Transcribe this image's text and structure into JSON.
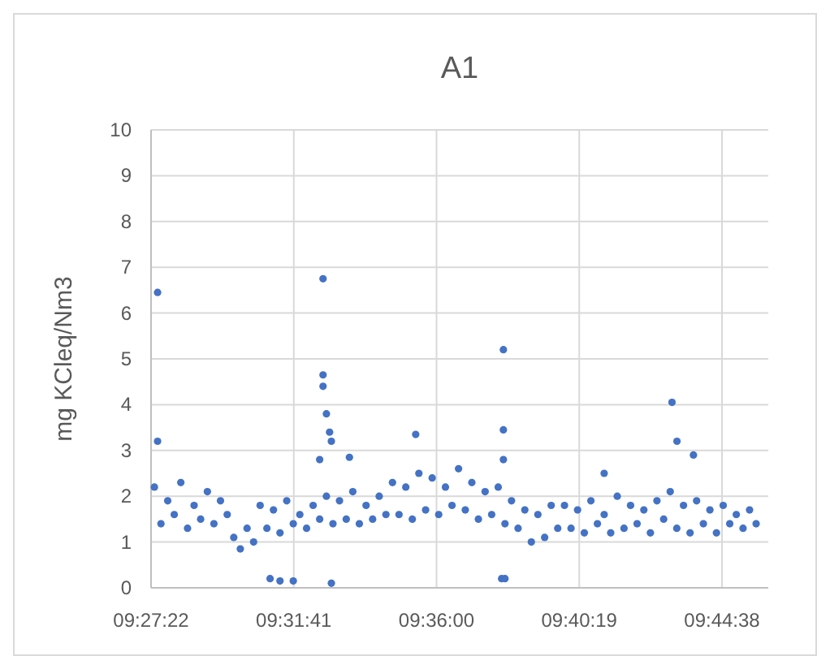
{
  "chart_data": {
    "type": "scatter",
    "title": "A1",
    "ylabel": "mg KCleq/Nm3",
    "grid": true,
    "marker": "circle",
    "xlim": [
      9.45611,
      9.76722
    ],
    "ylim": [
      0,
      10
    ],
    "yticks": [
      0,
      1,
      2,
      3,
      4,
      5,
      6,
      7,
      8,
      9,
      10
    ],
    "xticks": [
      {
        "value": 9.45611,
        "label": "09:27:22"
      },
      {
        "value": 9.52806,
        "label": "09:31:41"
      },
      {
        "value": 9.6,
        "label": "09:36:00"
      },
      {
        "value": 9.67194,
        "label": "09:40:19"
      },
      {
        "value": 9.74389,
        "label": "09:44:38"
      }
    ],
    "series": [
      {
        "color": "#4472c4",
        "x": [
          9.4578,
          9.4611,
          9.4645,
          9.4678,
          9.4711,
          9.4745,
          9.4778,
          9.4811,
          9.4845,
          9.4878,
          9.4911,
          9.4945,
          9.4978,
          9.5011,
          9.5045,
          9.5078,
          9.5111,
          9.5145,
          9.5178,
          9.5211,
          9.5245,
          9.5278,
          9.5311,
          9.5345,
          9.5378,
          9.5411,
          9.5445,
          9.5478,
          9.5511,
          9.5545,
          9.5578,
          9.5611,
          9.5645,
          9.5678,
          9.5711,
          9.5745,
          9.5778,
          9.5811,
          9.5845,
          9.5878,
          9.5911,
          9.5945,
          9.5978,
          9.6011,
          9.6045,
          9.6078,
          9.6111,
          9.6145,
          9.6178,
          9.6211,
          9.6245,
          9.6278,
          9.6311,
          9.6345,
          9.6378,
          9.6411,
          9.6445,
          9.6478,
          9.6511,
          9.6545,
          9.6578,
          9.6611,
          9.6645,
          9.6678,
          9.6711,
          9.6745,
          9.6778,
          9.6811,
          9.6845,
          9.6878,
          9.6911,
          9.6945,
          9.6978,
          9.7011,
          9.7045,
          9.7078,
          9.7111,
          9.7145,
          9.7178,
          9.7211,
          9.7245,
          9.7278,
          9.7311,
          9.7345,
          9.7378,
          9.7411,
          9.7445,
          9.7478,
          9.7511,
          9.7545,
          9.7578,
          9.7611,
          9.4594,
          9.4594,
          9.5161,
          9.5211,
          9.5278,
          9.5428,
          9.5428,
          9.5428,
          9.5445,
          9.5461,
          9.547,
          9.5411,
          9.5561,
          9.547,
          9.5895,
          9.6337,
          9.6337,
          9.6337,
          9.6328,
          9.6345,
          9.7187,
          9.7212,
          9.7295,
          9.6845
        ],
        "values": [
          2.2,
          1.4,
          1.9,
          1.6,
          2.3,
          1.3,
          1.8,
          1.5,
          2.1,
          1.4,
          1.9,
          1.6,
          1.1,
          0.85,
          1.3,
          1.0,
          1.8,
          1.3,
          1.7,
          1.2,
          1.9,
          1.4,
          1.6,
          1.3,
          1.8,
          1.5,
          2.0,
          1.4,
          1.9,
          1.5,
          2.1,
          1.4,
          1.8,
          1.5,
          2.0,
          1.6,
          2.3,
          1.6,
          2.2,
          1.5,
          2.5,
          1.7,
          2.4,
          1.6,
          2.2,
          1.8,
          2.6,
          1.7,
          2.3,
          1.5,
          2.1,
          1.6,
          2.2,
          1.4,
          1.9,
          1.3,
          1.7,
          1.0,
          1.6,
          1.1,
          1.8,
          1.3,
          1.8,
          1.3,
          1.7,
          1.2,
          1.9,
          1.4,
          1.6,
          1.2,
          2.0,
          1.3,
          1.8,
          1.4,
          1.7,
          1.2,
          1.9,
          1.5,
          2.1,
          1.3,
          1.8,
          1.2,
          1.9,
          1.4,
          1.7,
          1.2,
          1.8,
          1.4,
          1.6,
          1.3,
          1.7,
          1.4,
          6.45,
          3.2,
          0.2,
          0.15,
          0.15,
          6.75,
          4.65,
          4.4,
          3.8,
          3.4,
          3.2,
          2.8,
          2.85,
          0.1,
          3.35,
          5.2,
          3.45,
          2.8,
          0.2,
          0.2,
          4.05,
          3.2,
          2.9,
          2.5
        ]
      }
    ]
  }
}
